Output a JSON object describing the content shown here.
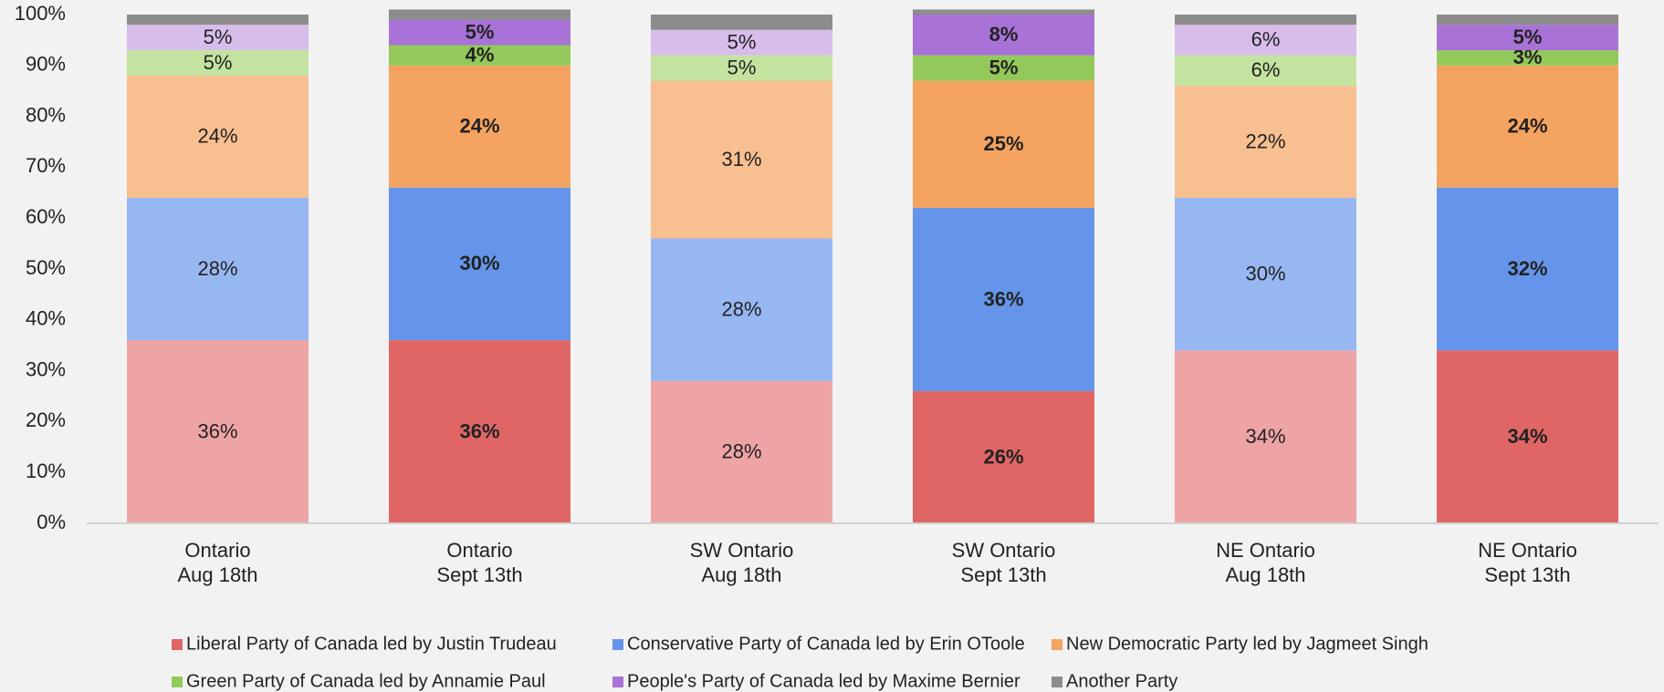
{
  "chart_data": {
    "type": "stacked_bar",
    "categories": [
      [
        "Ontario",
        "Aug 18th"
      ],
      [
        "Ontario",
        "Sept 13th"
      ],
      [
        "SW Ontario",
        "Aug 18th"
      ],
      [
        "SW Ontario",
        "Sept 13th"
      ],
      [
        "NE Ontario",
        "Aug 18th"
      ],
      [
        "NE Ontario",
        "Sept 13th"
      ]
    ],
    "series": [
      {
        "name": "Liberal Party of Canada led by Justin Trudeau",
        "color": "#e06666",
        "colors": [
          "#eea4a4",
          "#e06666",
          "#eea4a4",
          "#e06666",
          "#eea4a4",
          "#e06666"
        ],
        "values": [
          36,
          36,
          28,
          26,
          34,
          34
        ],
        "value_labels": [
          "36%",
          "36%",
          "28%",
          "26%",
          "34%",
          "34%"
        ]
      },
      {
        "name": "Conservative Party of Canada led by Erin OToole",
        "color": "#6495ea",
        "colors": [
          "#97b7f2",
          "#6495ea",
          "#97b7f2",
          "#6495ea",
          "#97b7f2",
          "#6495ea"
        ],
        "values": [
          28,
          30,
          28,
          36,
          30,
          32
        ],
        "value_labels": [
          "28%",
          "30%",
          "28%",
          "36%",
          "30%",
          "32%"
        ]
      },
      {
        "name": "New Democratic Party led by Jagmeet Singh",
        "color": "#f4a460",
        "colors": [
          "#f8bf91",
          "#f4a460",
          "#f8bf91",
          "#f4a460",
          "#f8bf91",
          "#f4a460"
        ],
        "values": [
          24,
          24,
          31,
          25,
          22,
          24
        ],
        "value_labels": [
          "24%",
          "24%",
          "31%",
          "25%",
          "22%",
          "24%"
        ]
      },
      {
        "name": "Green Party of Canada led by Annamie Paul",
        "color": "#93c95a",
        "colors": [
          "#c4e3a0",
          "#93c95a",
          "#c4e3a0",
          "#93c95a",
          "#c4e3a0",
          "#93c95a"
        ],
        "values": [
          5,
          4,
          5,
          5,
          6,
          3
        ],
        "value_labels": [
          "5%",
          "4%",
          "5%",
          "5%",
          "6%",
          "3%"
        ]
      },
      {
        "name": "People's Party of Canada led by Maxime Bernier",
        "color": "#a872d6",
        "colors": [
          "#d7bdea",
          "#a872d6",
          "#d7bdea",
          "#a872d6",
          "#d7bdea",
          "#a872d6"
        ],
        "values": [
          5,
          5,
          5,
          8,
          6,
          5
        ],
        "value_labels": [
          "5%",
          "5%",
          "5%",
          "8%",
          "6%",
          "5%"
        ]
      },
      {
        "name": "Another Party",
        "color": "#8c8c8c",
        "colors": [
          "#8c8c8c",
          "#8c8c8c",
          "#8c8c8c",
          "#8c8c8c",
          "#8c8c8c",
          "#8c8c8c"
        ],
        "values": [
          2,
          2,
          3,
          1,
          2,
          2
        ]
      }
    ],
    "bold_labels": [
      false,
      true,
      false,
      true,
      false,
      true
    ],
    "ylim": [
      0,
      100
    ],
    "yticks": [
      {
        "value": 0,
        "label": "0%"
      },
      {
        "value": 10,
        "label": "10%"
      },
      {
        "value": 20,
        "label": "20%"
      },
      {
        "value": 30,
        "label": "30%"
      },
      {
        "value": 40,
        "label": "40%"
      },
      {
        "value": 50,
        "label": "50%"
      },
      {
        "value": 60,
        "label": "60%"
      },
      {
        "value": 70,
        "label": "70%"
      },
      {
        "value": 80,
        "label": "80%"
      },
      {
        "value": 90,
        "label": "90%"
      },
      {
        "value": 100,
        "label": "100%"
      }
    ],
    "grid": false
  }
}
